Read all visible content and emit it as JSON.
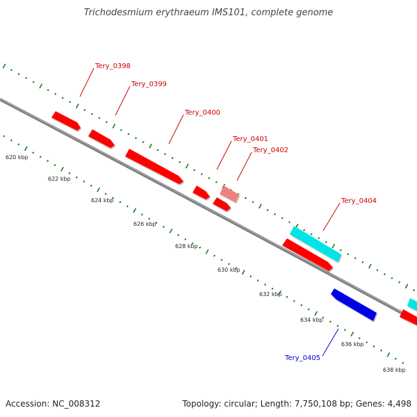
{
  "title": "Trichodesmium erythraeum IMS101, complete genome",
  "footer": {
    "accession": "Accession: NC_008312",
    "summary": "Topology: circular; Length: 7,750,108 bp; Genes: 4,498"
  },
  "colors": {
    "backbone": "#808080",
    "dots": "#1a7a1a",
    "forward_gene": "#ff0000",
    "forward_label": "#cc0000",
    "reverse_gene": "#0000e6",
    "reverse_label": "#0000cc",
    "other_gene": "#00e5e5",
    "pseudo_gene": "#f08080"
  },
  "ticks": [
    {
      "label": "620 kbp"
    },
    {
      "label": "622 kbp"
    },
    {
      "label": "624 kbp"
    },
    {
      "label": "626 kbp"
    },
    {
      "label": "628 kbp"
    },
    {
      "label": "630 kbp"
    },
    {
      "label": "632 kbp"
    },
    {
      "label": "634 kbp"
    },
    {
      "label": "636 kbp"
    },
    {
      "label": "638 kbp"
    }
  ],
  "genes": [
    {
      "name": "Tery_0398",
      "strand": "forward"
    },
    {
      "name": "Tery_0399",
      "strand": "forward"
    },
    {
      "name": "Tery_0400",
      "strand": "forward"
    },
    {
      "name": "Tery_0401",
      "strand": "forward"
    },
    {
      "name": "Tery_0402",
      "strand": "forward"
    },
    {
      "name": "Tery_0404",
      "strand": "forward"
    },
    {
      "name": "Tery_0405",
      "strand": "reverse"
    }
  ]
}
